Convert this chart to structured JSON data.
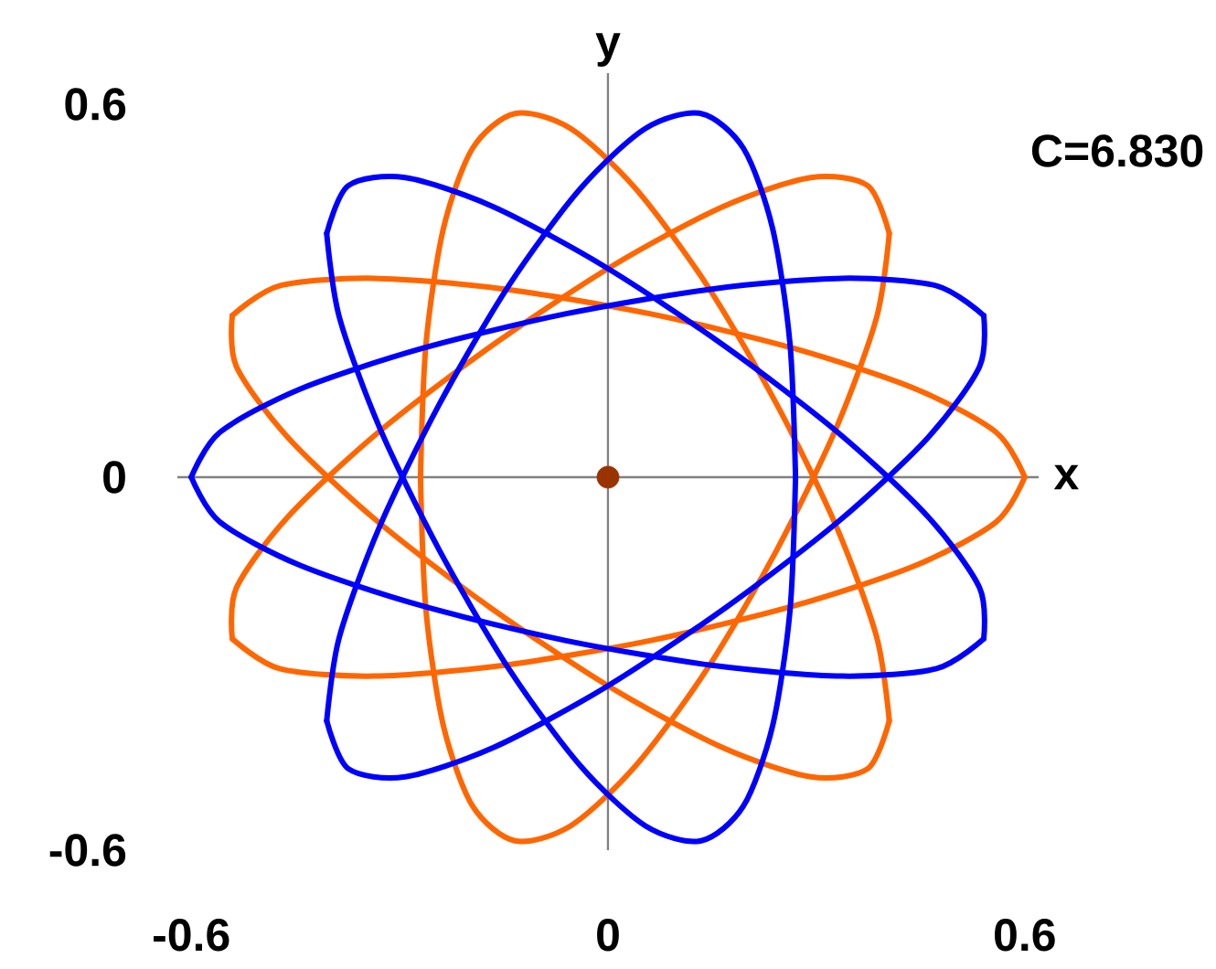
{
  "chart_data": {
    "type": "line",
    "xlabel": "x",
    "ylabel": "y",
    "annotations": [
      "C=6.830"
    ],
    "xlim": [
      -0.62,
      0.62
    ],
    "ylim": [
      -0.6,
      0.65
    ],
    "xticks": [
      -0.6,
      0,
      0.6
    ],
    "yticks": [
      -0.6,
      0,
      0.6
    ],
    "line_style": "solid",
    "series": [
      {
        "color": "#ff6600",
        "marker": "none",
        "x": [
          0.6,
          0.559,
          0.443,
          0.268,
          0.06,
          -0.152,
          -0.337,
          -0.473,
          -0.541
        ],
        "values": [
          0.0,
          0.072,
          0.142,
          0.207,
          0.263,
          0.303,
          0.32,
          0.308,
          0.26
        ]
      },
      {
        "color": "#ff6600",
        "marker": "none",
        "x": [
          -0.541,
          -0.535,
          -0.461,
          -0.332,
          -0.168,
          0.005,
          0.165,
          0.292,
          0.374,
          0.405
        ],
        "values": [
          0.26,
          0.178,
          0.064,
          -0.071,
          -0.211,
          -0.339,
          -0.435,
          -0.482,
          -0.469,
          -0.392
        ]
      },
      {
        "color": "#ff6600",
        "marker": "none",
        "x": [
          0.405,
          0.387,
          0.329,
          0.243,
          0.143,
          0.04,
          -0.054,
          -0.134,
          -0.195,
          -0.237,
          -0.262,
          -0.27
        ],
        "values": [
          -0.392,
          -0.258,
          -0.08,
          0.117,
          0.308,
          0.464,
          0.561,
          0.585,
          0.529,
          0.4,
          0.215,
          0.0
        ]
      },
      {
        "color": "#ff6600",
        "marker": "none",
        "x": [
          -0.27,
          -0.262,
          -0.237,
          -0.195,
          -0.134,
          -0.054,
          0.04,
          0.143,
          0.243,
          0.329,
          0.387,
          0.405
        ],
        "values": [
          0.0,
          -0.215,
          -0.4,
          -0.529,
          -0.585,
          -0.561,
          -0.464,
          -0.308,
          -0.117,
          0.08,
          0.258,
          0.392
        ]
      },
      {
        "color": "#ff6600",
        "marker": "none",
        "x": [
          0.405,
          0.374,
          0.292,
          0.165,
          0.005,
          -0.168,
          -0.332,
          -0.461,
          -0.535,
          -0.541
        ],
        "values": [
          0.392,
          0.469,
          0.482,
          0.435,
          0.339,
          0.211,
          0.071,
          -0.064,
          -0.178,
          -0.26
        ]
      },
      {
        "color": "#ff6600",
        "marker": "none",
        "x": [
          -0.541,
          -0.473,
          -0.337,
          -0.152,
          0.06,
          0.268,
          0.443,
          0.559,
          0.6
        ],
        "values": [
          -0.26,
          -0.308,
          -0.32,
          -0.303,
          -0.263,
          -0.207,
          -0.142,
          -0.072,
          0.0
        ]
      },
      {
        "color": "#0000ff",
        "marker": "none",
        "x": [
          -0.6,
          -0.559,
          -0.443,
          -0.268,
          -0.06,
          0.152,
          0.337,
          0.473,
          0.541
        ],
        "values": [
          0.0,
          0.072,
          0.142,
          0.207,
          0.263,
          0.303,
          0.32,
          0.308,
          0.26
        ]
      },
      {
        "color": "#0000ff",
        "marker": "none",
        "x": [
          0.541,
          0.535,
          0.461,
          0.332,
          0.168,
          -0.005,
          -0.165,
          -0.292,
          -0.374,
          -0.405
        ],
        "values": [
          0.26,
          0.178,
          0.064,
          -0.071,
          -0.211,
          -0.339,
          -0.435,
          -0.482,
          -0.469,
          -0.392
        ]
      },
      {
        "color": "#0000ff",
        "marker": "none",
        "x": [
          -0.405,
          -0.387,
          -0.329,
          -0.243,
          -0.143,
          -0.04,
          0.054,
          0.134,
          0.195,
          0.237,
          0.262,
          0.27
        ],
        "values": [
          -0.392,
          -0.258,
          -0.08,
          0.117,
          0.308,
          0.464,
          0.561,
          0.585,
          0.529,
          0.4,
          0.215,
          0.0
        ]
      },
      {
        "color": "#0000ff",
        "marker": "none",
        "x": [
          0.27,
          0.262,
          0.237,
          0.195,
          0.134,
          0.054,
          -0.04,
          -0.143,
          -0.243,
          -0.329,
          -0.387,
          -0.405
        ],
        "values": [
          0.0,
          -0.215,
          -0.4,
          -0.529,
          -0.585,
          -0.561,
          -0.464,
          -0.308,
          -0.117,
          0.08,
          0.258,
          0.392
        ]
      },
      {
        "color": "#0000ff",
        "marker": "none",
        "x": [
          -0.405,
          -0.374,
          -0.292,
          -0.165,
          -0.005,
          0.168,
          0.332,
          0.461,
          0.535,
          0.541
        ],
        "values": [
          0.392,
          0.469,
          0.482,
          0.435,
          0.339,
          0.211,
          0.071,
          -0.064,
          -0.178,
          -0.26
        ]
      },
      {
        "color": "#0000ff",
        "marker": "none",
        "x": [
          0.541,
          0.473,
          0.337,
          0.152,
          -0.06,
          -0.268,
          -0.443,
          -0.559,
          -0.6
        ],
        "values": [
          -0.26,
          -0.308,
          -0.32,
          -0.303,
          -0.263,
          -0.207,
          -0.142,
          -0.072,
          0.0
        ]
      },
      {
        "type": "scatter",
        "color": "#993300",
        "marker": "circle",
        "x": [
          0
        ],
        "values": [
          0
        ]
      }
    ]
  }
}
